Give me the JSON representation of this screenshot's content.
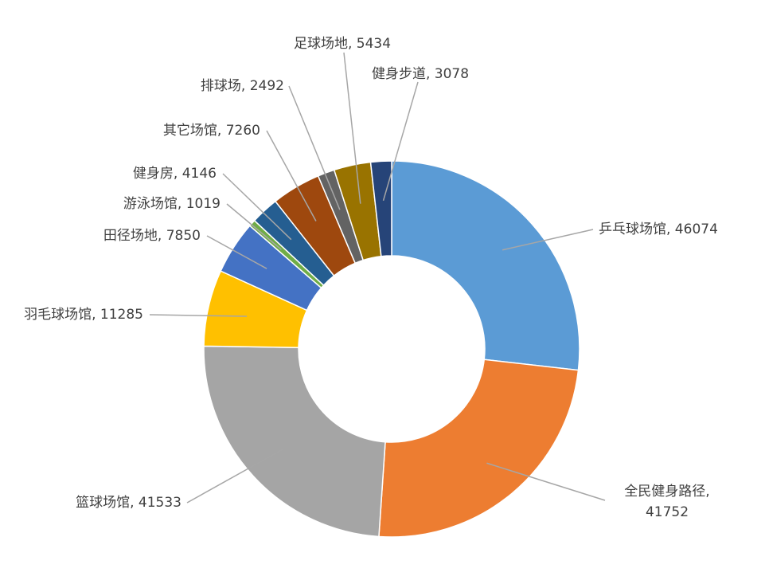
{
  "chart_data": {
    "type": "pie",
    "donut": true,
    "start": "12 o'clock, clockwise",
    "slices": [
      {
        "label": "乒乓球场馆",
        "value": 46074,
        "color": "#5B9BD5",
        "text": [
          "乒乓球场馆, 46074"
        ]
      },
      {
        "label": "全民健身路径",
        "value": 41752,
        "color": "#ED7D31",
        "text": [
          "全民健身路径,",
          "41752"
        ]
      },
      {
        "label": "篮球场馆",
        "value": 41533,
        "color": "#A5A5A5",
        "text": [
          "篮球场馆, 41533"
        ]
      },
      {
        "label": "羽毛球场馆",
        "value": 11285,
        "color": "#FFC000",
        "text": [
          "羽毛球场馆, 11285"
        ]
      },
      {
        "label": "田径场地",
        "value": 7850,
        "color": "#4472C4",
        "text": [
          "田径场地, 7850"
        ]
      },
      {
        "label": "游泳场馆",
        "value": 1019,
        "color": "#70AD47",
        "text": [
          "游泳场馆, 1019"
        ]
      },
      {
        "label": "健身房",
        "value": 4146,
        "color": "#255E91",
        "text": [
          "健身房, 4146"
        ]
      },
      {
        "label": "其它场馆",
        "value": 7260,
        "color": "#9E480E",
        "text": [
          "其它场馆, 7260"
        ]
      },
      {
        "label": "排球场",
        "value": 2492,
        "color": "#636363",
        "text": [
          "排球场, 2492"
        ]
      },
      {
        "label": "足球场地",
        "value": 5434,
        "color": "#997300",
        "text": [
          "足球场地, 5434"
        ]
      },
      {
        "label": "健身步道",
        "value": 3078,
        "color": "#264478",
        "text": [
          "健身步道, 3078"
        ]
      }
    ]
  }
}
